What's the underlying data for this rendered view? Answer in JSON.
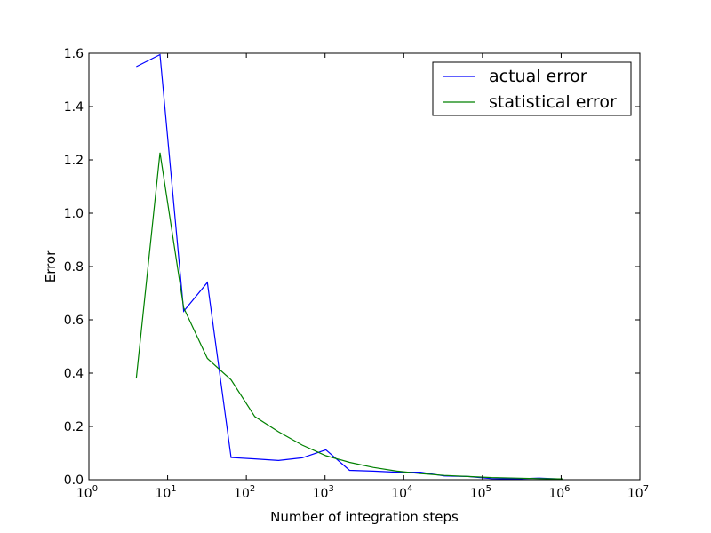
{
  "chart_data": {
    "type": "line",
    "title": "",
    "xlabel": "Number of integration steps",
    "ylabel": "Error",
    "xscale": "log",
    "xlim": [
      1,
      10000000
    ],
    "ylim": [
      0,
      1.6
    ],
    "x_ticks": [
      {
        "value": 1,
        "base": "10",
        "exp": "0"
      },
      {
        "value": 10,
        "base": "10",
        "exp": "1"
      },
      {
        "value": 100,
        "base": "10",
        "exp": "2"
      },
      {
        "value": 1000,
        "base": "10",
        "exp": "3"
      },
      {
        "value": 10000,
        "base": "10",
        "exp": "4"
      },
      {
        "value": 100000,
        "base": "10",
        "exp": "5"
      },
      {
        "value": 1000000,
        "base": "10",
        "exp": "6"
      },
      {
        "value": 10000000,
        "base": "10",
        "exp": "7"
      }
    ],
    "y_ticks": [
      {
        "value": 0.0,
        "label": "0.0"
      },
      {
        "value": 0.2,
        "label": "0.2"
      },
      {
        "value": 0.4,
        "label": "0.4"
      },
      {
        "value": 0.6,
        "label": "0.6"
      },
      {
        "value": 0.8,
        "label": "0.8"
      },
      {
        "value": 1.0,
        "label": "1.0"
      },
      {
        "value": 1.2,
        "label": "1.2"
      },
      {
        "value": 1.4,
        "label": "1.4"
      },
      {
        "value": 1.6,
        "label": "1.6"
      }
    ],
    "grid": false,
    "legend_position": "top-right",
    "series": [
      {
        "name": "actual error",
        "color": "#0000ff",
        "x": [
          4,
          8,
          16,
          32,
          64,
          128,
          256,
          512,
          1024,
          2048,
          4096,
          8192,
          16384,
          32768,
          65536,
          131072,
          262144,
          524288,
          1048576
        ],
        "y": [
          1.55,
          1.595,
          0.632,
          0.74,
          0.083,
          0.078,
          0.072,
          0.082,
          0.112,
          0.035,
          0.032,
          0.028,
          0.028,
          0.014,
          0.012,
          0.004,
          0.003,
          0.006,
          0.002
        ]
      },
      {
        "name": "statistical error",
        "color": "#008000",
        "x": [
          4,
          8,
          16,
          32,
          64,
          128,
          256,
          512,
          1024,
          2048,
          4096,
          8192,
          16384,
          32768,
          65536,
          131072,
          262144,
          524288,
          1048576
        ],
        "y": [
          0.38,
          1.227,
          0.645,
          0.455,
          0.375,
          0.237,
          0.18,
          0.13,
          0.09,
          0.065,
          0.046,
          0.032,
          0.023,
          0.016,
          0.012,
          0.008,
          0.006,
          0.004,
          0.003
        ]
      }
    ]
  }
}
